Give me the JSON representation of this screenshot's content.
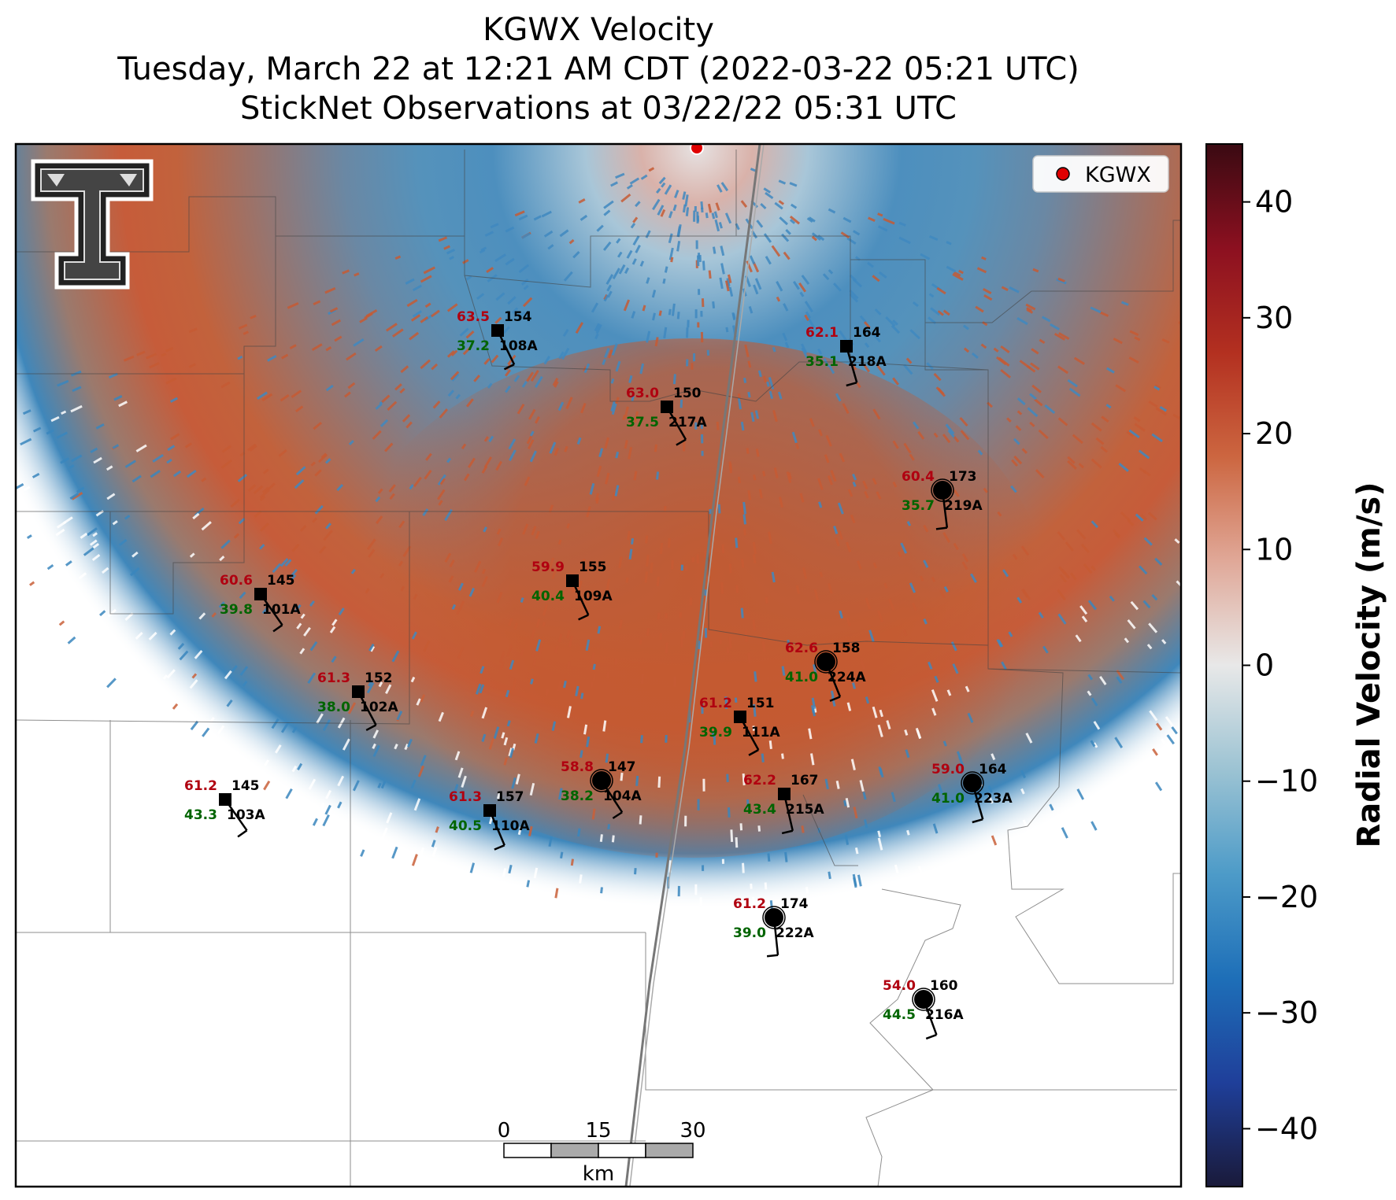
{
  "title": {
    "line1": "KGWX Velocity",
    "line2": "Tuesday, March 22 at 12:21 AM CDT (2022-03-22 05:21 UTC)",
    "line3": "StickNet Observations at 03/22/22 05:31 UTC"
  },
  "legend": {
    "label": "KGWX",
    "marker_color": "#e00000"
  },
  "colorbar": {
    "label": "Radial Velocity (m/s)",
    "ticks": [
      "40",
      "30",
      "20",
      "10",
      "0",
      "−10",
      "−20",
      "−30",
      "−40"
    ],
    "min": -45,
    "max": 45,
    "colors": [
      "#1a1a3a",
      "#1f3f9a",
      "#1e6fb8",
      "#4d9bc8",
      "#9cc3d3",
      "#e8e8e8",
      "#e0a898",
      "#cc6640",
      "#b33020",
      "#8c1020",
      "#3a0a12"
    ]
  },
  "scalebar": {
    "ticks": [
      "0",
      "15",
      "30"
    ],
    "unit": "km"
  },
  "logo": {
    "name": "Texas Tech double-T"
  },
  "stations": [
    {
      "id": "108A",
      "temp": "63.5",
      "dew": "37.2",
      "dir": "154",
      "marker": "square"
    },
    {
      "id": "218A",
      "temp": "62.1",
      "dew": "35.1",
      "dir": "164",
      "marker": "square"
    },
    {
      "id": "217A",
      "temp": "63.0",
      "dew": "37.5",
      "dir": "150",
      "marker": "square"
    },
    {
      "id": "219A",
      "temp": "60.4",
      "dew": "35.7",
      "dir": "173",
      "marker": "circle"
    },
    {
      "id": "101A",
      "temp": "60.6",
      "dew": "39.8",
      "dir": "145",
      "marker": "square"
    },
    {
      "id": "109A",
      "temp": "59.9",
      "dew": "40.4",
      "dir": "155",
      "marker": "square"
    },
    {
      "id": "224A",
      "temp": "62.6",
      "dew": "41.0",
      "dir": "158",
      "marker": "circle"
    },
    {
      "id": "102A",
      "temp": "61.3",
      "dew": "38.0",
      "dir": "152",
      "marker": "square"
    },
    {
      "id": "111A",
      "temp": "61.2",
      "dew": "39.9",
      "dir": "151",
      "marker": "square"
    },
    {
      "id": "104A",
      "temp": "58.8",
      "dew": "38.2",
      "dir": "147",
      "marker": "circle"
    },
    {
      "id": "215A",
      "temp": "62.2",
      "dew": "43.4",
      "dir": "167",
      "marker": "square"
    },
    {
      "id": "223A",
      "temp": "59.0",
      "dew": "41.0",
      "dir": "164",
      "marker": "circle"
    },
    {
      "id": "103A",
      "temp": "61.2",
      "dew": "43.3",
      "dir": "145",
      "marker": "square"
    },
    {
      "id": "110A",
      "temp": "61.3",
      "dew": "40.5",
      "dir": "157",
      "marker": "square"
    },
    {
      "id": "222A",
      "temp": "61.2",
      "dew": "39.0",
      "dir": "174",
      "marker": "circle"
    },
    {
      "id": "216A",
      "temp": "54.0",
      "dew": "44.5",
      "dir": "160",
      "marker": "circle"
    }
  ]
}
